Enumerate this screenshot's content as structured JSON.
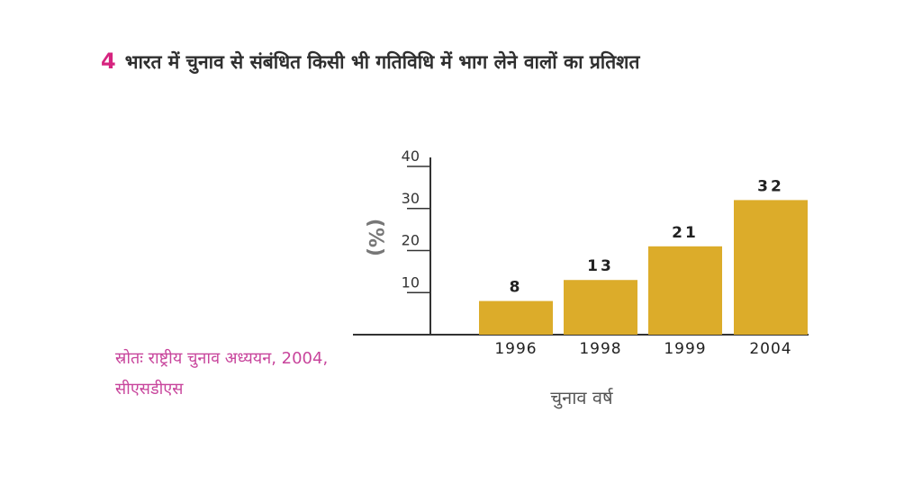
{
  "heading": {
    "number": "4",
    "title": "भारत में चुनाव से संबंधित किसी भी गतिविधि में भाग लेने वालों का प्रतिशत"
  },
  "source": {
    "line1": "स्रोतः राष्ट्रीय चुनाव अध्ययन, 2004,",
    "line2": "सीएसडीएस"
  },
  "colors": {
    "bar": "#dcac2a",
    "accent": "#d6247f",
    "source_text": "#c8459c"
  },
  "chart_data": {
    "type": "bar",
    "title": "भारत में चुनाव से संबंधित किसी भी गतिविधि में भाग लेने वालों का प्रतिशत",
    "categories": [
      "1996",
      "1998",
      "1999",
      "2004"
    ],
    "values": [
      8,
      13,
      21,
      32
    ],
    "value_labels": [
      "8",
      "13",
      "21",
      "32"
    ],
    "xlabel": "चुनाव वर्ष",
    "ylabel": "(%)",
    "ylim": [
      0,
      40
    ],
    "yticks": [
      "10",
      "20",
      "30",
      "40"
    ],
    "ytick_values": [
      10,
      20,
      30,
      40
    ],
    "grid": false,
    "legend": "none"
  }
}
